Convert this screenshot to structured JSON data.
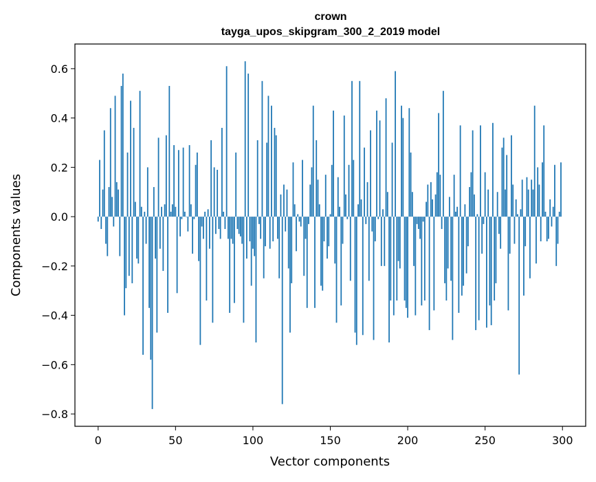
{
  "chart_data": {
    "type": "bar",
    "title": "crown",
    "subtitle": "tayga_upos_skipgram_300_2_2019 model",
    "xlabel": "Vector components",
    "ylabel": "Components values",
    "xlim": [
      -15,
      315
    ],
    "ylim": [
      -0.85,
      0.7
    ],
    "xticks": [
      0,
      50,
      100,
      150,
      200,
      250,
      300
    ],
    "yticks": [
      -0.8,
      -0.6,
      -0.4,
      -0.2,
      0.0,
      0.2,
      0.4,
      0.6
    ],
    "ytick_labels": [
      "−0.8",
      "−0.6",
      "−0.4",
      "−0.2",
      "0.0",
      "0.2",
      "0.4",
      "0.6"
    ],
    "bar_color": "#1f77b4",
    "values": [
      -0.02,
      0.23,
      -0.05,
      0.11,
      0.35,
      -0.11,
      -0.16,
      0.12,
      0.44,
      0.08,
      -0.04,
      0.49,
      0.14,
      0.11,
      -0.16,
      0.53,
      0.58,
      -0.4,
      -0.29,
      0.26,
      -0.24,
      0.47,
      -0.27,
      0.36,
      0.06,
      -0.17,
      -0.19,
      0.51,
      0.04,
      -0.56,
      0.02,
      -0.11,
      0.2,
      -0.37,
      -0.58,
      -0.78,
      0.12,
      -0.17,
      -0.47,
      0.32,
      -0.13,
      0.04,
      -0.22,
      0.05,
      0.33,
      -0.39,
      0.53,
      0.02,
      0.05,
      0.29,
      0.04,
      -0.31,
      0.27,
      -0.08,
      -0.01,
      0.28,
      0.02,
      0.0,
      -0.06,
      0.29,
      0.05,
      -0.15,
      -0.01,
      0.21,
      0.26,
      -0.18,
      -0.52,
      -0.04,
      -0.09,
      0.02,
      -0.34,
      0.03,
      -0.13,
      0.31,
      -0.43,
      0.2,
      -0.07,
      0.19,
      -0.05,
      -0.09,
      0.36,
      0.02,
      -0.05,
      0.61,
      -0.09,
      -0.39,
      -0.09,
      -0.11,
      -0.35,
      0.26,
      -0.05,
      -0.07,
      -0.08,
      -0.11,
      -0.43,
      0.63,
      -0.17,
      0.58,
      -0.1,
      -0.28,
      -0.13,
      -0.16,
      -0.51,
      0.31,
      -0.03,
      -0.09,
      0.55,
      -0.25,
      -0.12,
      0.3,
      0.49,
      -0.13,
      0.45,
      -0.1,
      0.36,
      0.33,
      -0.09,
      -0.25,
      0.09,
      -0.76,
      0.13,
      -0.06,
      0.11,
      -0.21,
      -0.47,
      -0.27,
      0.22,
      0.05,
      -0.14,
      0.01,
      -0.02,
      -0.04,
      0.23,
      -0.24,
      -0.09,
      -0.37,
      -0.03,
      0.13,
      0.2,
      0.45,
      -0.37,
      0.31,
      0.15,
      0.05,
      -0.28,
      -0.3,
      -0.1,
      0.17,
      -0.17,
      -0.12,
      0.01,
      0.21,
      0.43,
      -0.19,
      -0.43,
      0.16,
      0.04,
      -0.36,
      -0.11,
      0.41,
      0.09,
      -0.01,
      0.21,
      -0.26,
      0.55,
      0.23,
      -0.47,
      -0.52,
      0.05,
      0.55,
      0.07,
      -0.48,
      0.28,
      -0.03,
      0.14,
      -0.26,
      0.35,
      -0.06,
      -0.5,
      -0.1,
      0.43,
      -0.01,
      0.39,
      -0.2,
      0.03,
      -0.2,
      0.48,
      0.1,
      -0.51,
      -0.34,
      0.3,
      -0.4,
      0.59,
      -0.34,
      -0.18,
      -0.21,
      0.45,
      0.4,
      -0.34,
      -0.37,
      -0.41,
      0.44,
      0.26,
      0.1,
      -0.2,
      -0.4,
      -0.03,
      -0.05,
      -0.09,
      -0.36,
      -0.02,
      -0.34,
      0.06,
      0.13,
      -0.46,
      0.14,
      0.07,
      -0.38,
      0.09,
      0.18,
      0.42,
      0.17,
      -0.05,
      0.51,
      -0.27,
      -0.34,
      -0.21,
      0.08,
      -0.26,
      -0.5,
      0.17,
      0.02,
      0.04,
      -0.39,
      0.37,
      -0.32,
      -0.28,
      0.05,
      -0.23,
      -0.12,
      0.12,
      0.18,
      0.35,
      0.09,
      -0.46,
      0.01,
      -0.42,
      0.37,
      -0.15,
      -0.03,
      0.18,
      -0.45,
      0.11,
      -0.36,
      -0.44,
      0.38,
      -0.34,
      -0.27,
      0.1,
      -0.07,
      -0.13,
      0.28,
      0.32,
      0.11,
      0.25,
      -0.38,
      -0.15,
      0.33,
      0.13,
      -0.11,
      0.07,
      0.01,
      -0.64,
      0.03,
      0.15,
      -0.32,
      -0.12,
      0.16,
      0.11,
      -0.25,
      0.15,
      0.11,
      0.45,
      -0.19,
      0.2,
      0.13,
      -0.1,
      0.22,
      0.37,
      0.02,
      -0.1,
      -0.09,
      0.07,
      -0.04,
      0.04,
      0.21,
      -0.2,
      -0.11,
      0.02,
      0.22
    ]
  }
}
